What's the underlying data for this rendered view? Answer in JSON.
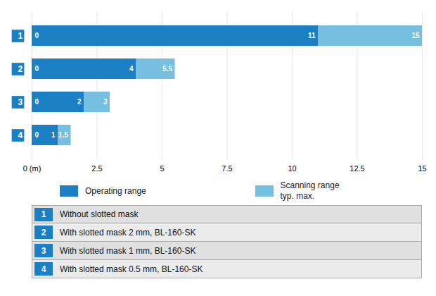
{
  "chart_data": {
    "type": "bar",
    "orientation": "horizontal",
    "categories": [
      "1",
      "2",
      "3",
      "4"
    ],
    "series": [
      {
        "name": "Operating range",
        "color": "#1b7fc4",
        "values": [
          11,
          4,
          2,
          1
        ]
      },
      {
        "name": "Scanning range\ntyp. max.",
        "color": "#76bfe0",
        "values": [
          15,
          5.5,
          3,
          1.5
        ]
      }
    ],
    "xlim": [
      0,
      15
    ],
    "xticks": [
      {
        "value": 0,
        "label": "0 (m)"
      },
      2.5,
      5,
      7.5,
      10,
      12.5,
      15
    ],
    "grid": true,
    "data_labels": true,
    "legend": "bottom",
    "annotations": [
      {
        "text": "0",
        "x": 0,
        "category": "1"
      },
      {
        "text": "0",
        "x": 0,
        "category": "2"
      },
      {
        "text": "0",
        "x": 0,
        "category": "3"
      },
      {
        "text": "0",
        "x": 0,
        "category": "4"
      }
    ],
    "table": [
      {
        "label": "1",
        "text": "Without slotted mask"
      },
      {
        "label": "2",
        "text": "With slotted mask 2 mm, BL-160-SK"
      },
      {
        "label": "3",
        "text": "With slotted mask 1 mm, BL-160-SK"
      },
      {
        "label": "4",
        "text": "With slotted mask 0.5 mm, BL-160-SK"
      }
    ]
  }
}
